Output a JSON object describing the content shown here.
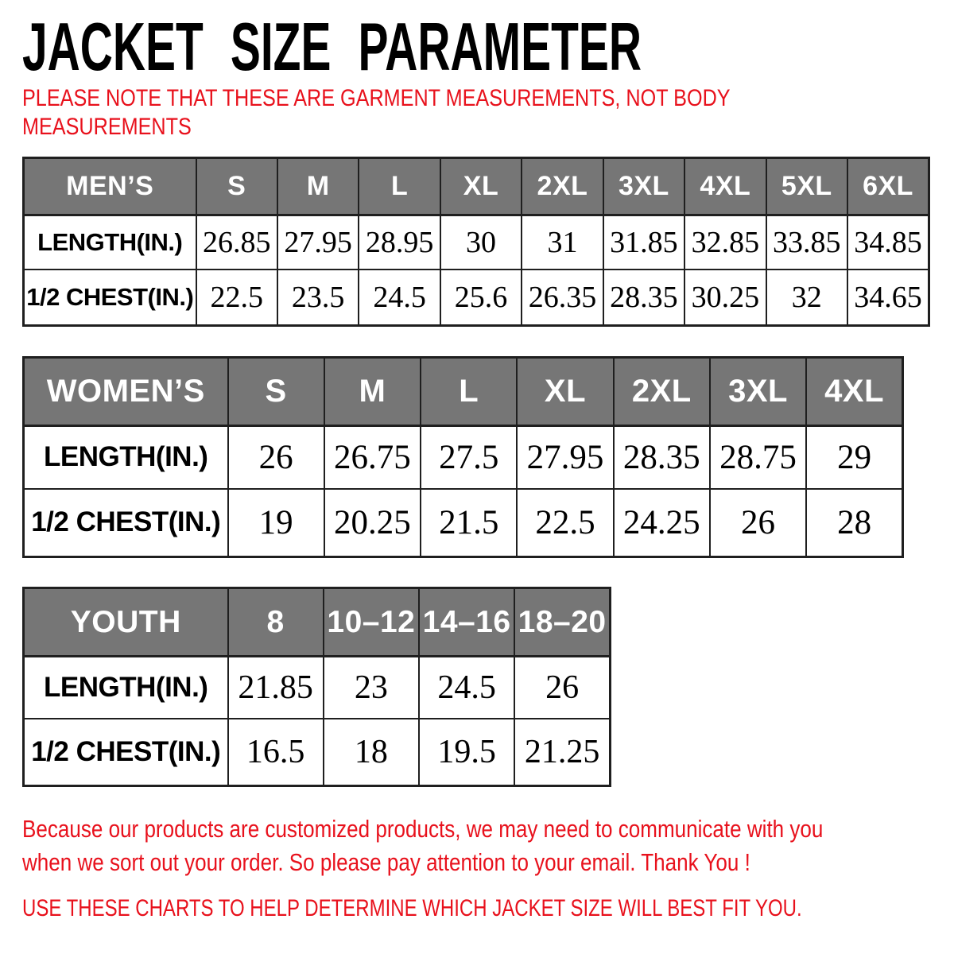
{
  "header": {
    "title": "JACKET SIZE PARAMETER",
    "note_lines": [
      "PLEASE NOTE THAT THESE ARE GARMENT MEASUREMENTS, NOT BODY",
      "MEASUREMENTS"
    ]
  },
  "tables": {
    "mens": {
      "name": "MEN’S",
      "sizes": [
        "S",
        "M",
        "L",
        "XL",
        "2XL",
        "3XL",
        "4XL",
        "5XL",
        "6XL"
      ],
      "rows": [
        {
          "label": "LENGTH(IN.)",
          "values": [
            "26.85",
            "27.95",
            "28.95",
            "30",
            "31",
            "31.85",
            "32.85",
            "33.85",
            "34.85"
          ]
        },
        {
          "label": "1/2 CHEST(IN.)",
          "values": [
            "22.5",
            "23.5",
            "24.5",
            "25.6",
            "26.35",
            "28.35",
            "30.25",
            "32",
            "34.65"
          ]
        }
      ]
    },
    "womens": {
      "name": "WOMEN’S",
      "sizes": [
        "S",
        "M",
        "L",
        "XL",
        "2XL",
        "3XL",
        "4XL"
      ],
      "rows": [
        {
          "label": "LENGTH(IN.)",
          "values": [
            "26",
            "26.75",
            "27.5",
            "27.95",
            "28.35",
            "28.75",
            "29"
          ]
        },
        {
          "label": "1/2 CHEST(IN.)",
          "values": [
            "19",
            "20.25",
            "21.5",
            "22.5",
            "24.25",
            "26",
            "28"
          ]
        }
      ]
    },
    "youth": {
      "name": "YOUTH",
      "sizes": [
        "8",
        "10–12",
        "14–16",
        "18–20"
      ],
      "rows": [
        {
          "label": "LENGTH(IN.)",
          "values": [
            "21.85",
            "23",
            "24.5",
            "26"
          ]
        },
        {
          "label": "1/2 CHEST(IN.)",
          "values": [
            "16.5",
            "18",
            "19.5",
            "21.25"
          ]
        }
      ]
    }
  },
  "footer": {
    "notice_lines": [
      "Because our products are customized products, we may need to communicate with you",
      "when we sort out your order. So please pay attention to your email. Thank You !"
    ],
    "usage_line": "USE THESE CHARTS TO HELP DETERMINE WHICH JACKET SIZE WILL BEST FIT YOU."
  },
  "colors": {
    "header_bg": "#767676",
    "border": "#1f1f1f",
    "accent_red": "#e8111c",
    "text": "#000000"
  }
}
